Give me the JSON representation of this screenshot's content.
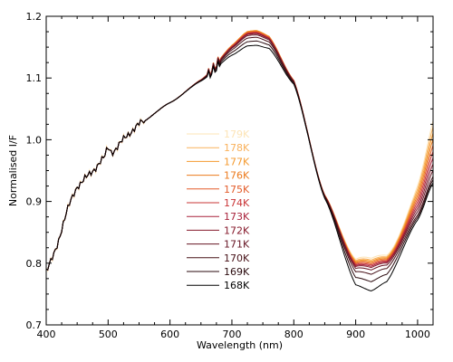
{
  "chart_data": {
    "type": "line",
    "xlabel": "Wavelength (nm)",
    "ylabel": "Normalised I/F",
    "xlim": [
      400,
      1025
    ],
    "ylim": [
      0.7,
      1.2
    ],
    "x_ticks": [
      "400",
      "500",
      "600",
      "700",
      "800",
      "900",
      "1000"
    ],
    "y_ticks": [
      "0.7",
      "0.8",
      "0.9",
      "1.0",
      "1.1",
      "1.2"
    ],
    "grid": false,
    "legend_position": "center",
    "x_nodes": [
      400,
      450,
      500,
      550,
      600,
      650,
      700,
      725,
      740,
      760,
      800,
      850,
      900,
      925,
      950,
      1000,
      1025
    ],
    "base_profile": [
      0.785,
      0.925,
      0.975,
      1.025,
      1.06,
      1.095,
      1.137,
      1.152,
      1.153,
      1.148,
      1.09,
      0.905,
      0.765,
      0.755,
      0.77,
      0.87,
      0.93
    ],
    "series": [
      {
        "name": "179K",
        "color": "#fde4b6",
        "peak_offset": 0.023,
        "trough_offset": 0.053,
        "edge_offset": 0.1,
        "ripple_scale": 1.6
      },
      {
        "name": "178K",
        "color": "#f9b15b",
        "peak_offset": 0.024,
        "trough_offset": 0.05,
        "edge_offset": 0.09,
        "ripple_scale": 1.0
      },
      {
        "name": "177K",
        "color": "#f49a2e",
        "peak_offset": 0.024,
        "trough_offset": 0.048,
        "edge_offset": 0.08,
        "ripple_scale": 1.0
      },
      {
        "name": "176K",
        "color": "#ec7a1c",
        "peak_offset": 0.023,
        "trough_offset": 0.046,
        "edge_offset": 0.07,
        "ripple_scale": 1.0
      },
      {
        "name": "175K",
        "color": "#e35c2a",
        "peak_offset": 0.022,
        "trough_offset": 0.044,
        "edge_offset": 0.06,
        "ripple_scale": 1.0
      },
      {
        "name": "174K",
        "color": "#c93436",
        "peak_offset": 0.021,
        "trough_offset": 0.042,
        "edge_offset": 0.05,
        "ripple_scale": 1.0
      },
      {
        "name": "173K",
        "color": "#a9233c",
        "peak_offset": 0.02,
        "trough_offset": 0.04,
        "edge_offset": 0.04,
        "ripple_scale": 1.0
      },
      {
        "name": "172K",
        "color": "#86192b",
        "peak_offset": 0.019,
        "trough_offset": 0.038,
        "edge_offset": 0.03,
        "ripple_scale": 1.0
      },
      {
        "name": "171K",
        "color": "#651423",
        "peak_offset": 0.017,
        "trough_offset": 0.034,
        "edge_offset": 0.02,
        "ripple_scale": 1.0
      },
      {
        "name": "170K",
        "color": "#461017",
        "peak_offset": 0.013,
        "trough_offset": 0.027,
        "edge_offset": 0.01,
        "ripple_scale": 1.0
      },
      {
        "name": "169K",
        "color": "#2a0a0e",
        "peak_offset": 0.007,
        "trough_offset": 0.015,
        "edge_offset": 0.005,
        "ripple_scale": 1.0
      },
      {
        "name": "168K",
        "color": "#000000",
        "peak_offset": 0.0,
        "trough_offset": 0.0,
        "edge_offset": 0.0,
        "ripple_scale": 1.0
      }
    ]
  }
}
